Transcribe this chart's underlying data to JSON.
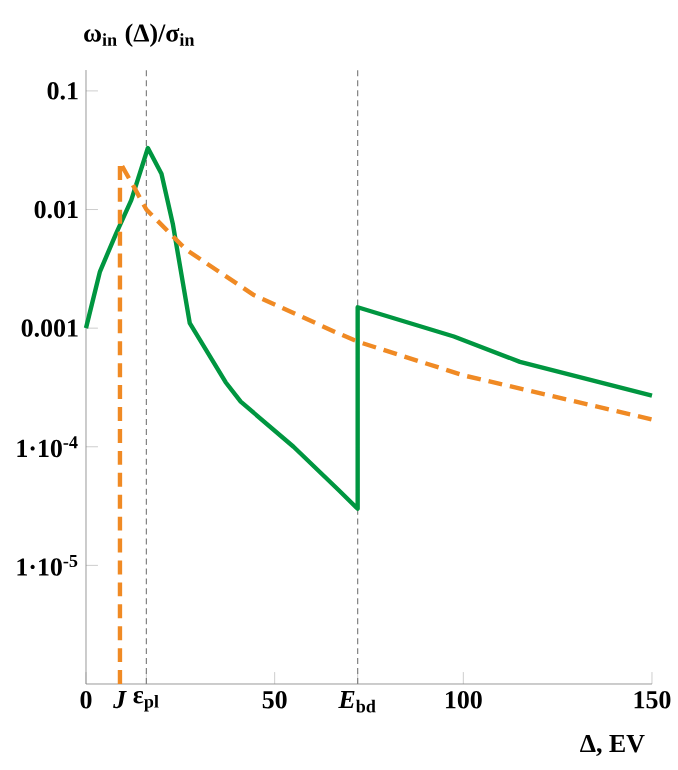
{
  "chart_data": {
    "type": "line",
    "ylabel": "ω$_{in}$ (Δ)/σ$_{in}$",
    "xlabel": "Δ, EV",
    "log": "y",
    "xlim": [
      0,
      150
    ],
    "ylim": [
      1e-06,
      0.15
    ],
    "xticks": [
      0,
      {
        "value": 9,
        "label": "*J*"
      },
      {
        "value": 16,
        "label": "ε$_{pl}$"
      },
      50,
      {
        "value": 72,
        "label": "*E*$_{bd}$"
      },
      100,
      150
    ],
    "yticks": [
      0.1,
      0.01,
      0.001,
      {
        "value": 0.0001,
        "label": "1·10$^{-4}$"
      },
      {
        "value": 1e-05,
        "label": "1·10$^{-5}$"
      }
    ],
    "series": [
      {
        "color": "#009640",
        "line_style": "solid",
        "x": [
          0,
          3.7,
          8,
          12,
          16.4,
          20,
          23,
          27.5,
          37,
          41,
          55,
          67,
          72,
          72,
          97.5,
          115,
          150
        ],
        "values": [
          0.001,
          0.003,
          0.0063,
          0.012,
          0.033,
          0.02,
          0.0076,
          0.0011,
          0.00035,
          0.00024,
          0.0001,
          4.3e-05,
          3e-05,
          0.0015,
          0.00085,
          0.00052,
          0.00027
        ]
      },
      {
        "color": "#f08a24",
        "line_style": "dashed",
        "x": [
          9,
          9,
          12.7,
          16,
          26.5,
          44.5,
          66,
          72,
          100,
          150
        ],
        "values": [
          1e-06,
          0.025,
          0.0155,
          0.01,
          0.0046,
          0.0019,
          0.00093,
          0.00077,
          0.0004,
          0.00017
        ]
      }
    ],
    "ref_lines": [
      {
        "axis": "x",
        "value": 16,
        "color": "#808080",
        "line_style": "dashed"
      },
      {
        "axis": "x",
        "value": 72,
        "color": "#808080",
        "line_style": "dashed"
      }
    ]
  }
}
